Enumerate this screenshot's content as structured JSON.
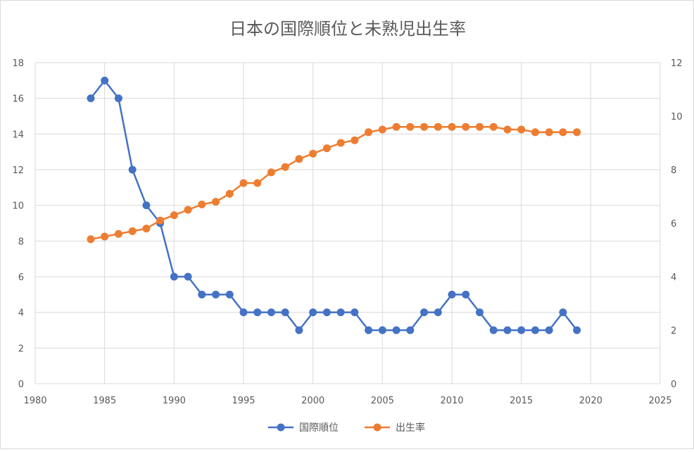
{
  "chart_data": {
    "type": "line",
    "title": "日本の国際順位と未熟児出生率",
    "xlabel": "",
    "ylabel": "",
    "y2label": "",
    "xlim": [
      1980,
      2025
    ],
    "ylim": [
      0,
      18
    ],
    "y2lim": [
      0,
      12
    ],
    "x_ticks": [
      1980,
      1985,
      1990,
      1995,
      2000,
      2005,
      2010,
      2015,
      2020,
      2025
    ],
    "y_ticks": [
      0,
      2,
      4,
      6,
      8,
      10,
      12,
      14,
      16,
      18
    ],
    "y2_ticks": [
      0,
      2,
      4,
      6,
      8,
      10,
      12
    ],
    "grid": "vertical and horizontal major gridlines",
    "legend_position": "bottom",
    "x": [
      1984,
      1985,
      1986,
      1987,
      1988,
      1989,
      1990,
      1991,
      1992,
      1993,
      1994,
      1995,
      1996,
      1997,
      1998,
      1999,
      2000,
      2001,
      2002,
      2003,
      2004,
      2005,
      2006,
      2007,
      2008,
      2009,
      2010,
      2011,
      2012,
      2013,
      2014,
      2015,
      2016,
      2017,
      2018,
      2019
    ],
    "series": [
      {
        "name": "国際順位",
        "axis": "left",
        "color": "#4472C4",
        "values": [
          16,
          17,
          16,
          12,
          10,
          9,
          6,
          6,
          5,
          5,
          5,
          4,
          4,
          4,
          4,
          3,
          4,
          4,
          4,
          4,
          3,
          3,
          3,
          3,
          4,
          4,
          5,
          5,
          4,
          3,
          3,
          3,
          3,
          3,
          4,
          3
        ]
      },
      {
        "name": "出生率",
        "axis": "right",
        "color": "#ED7D31",
        "values": [
          5.4,
          5.5,
          5.6,
          5.7,
          5.8,
          6.1,
          6.3,
          6.5,
          6.7,
          6.8,
          7.1,
          7.5,
          7.5,
          7.9,
          8.1,
          8.4,
          8.6,
          8.8,
          9.0,
          9.1,
          9.4,
          9.5,
          9.6,
          9.6,
          9.6,
          9.6,
          9.6,
          9.6,
          9.6,
          9.6,
          9.5,
          9.5,
          9.4,
          9.4,
          9.4,
          9.4
        ]
      }
    ]
  }
}
